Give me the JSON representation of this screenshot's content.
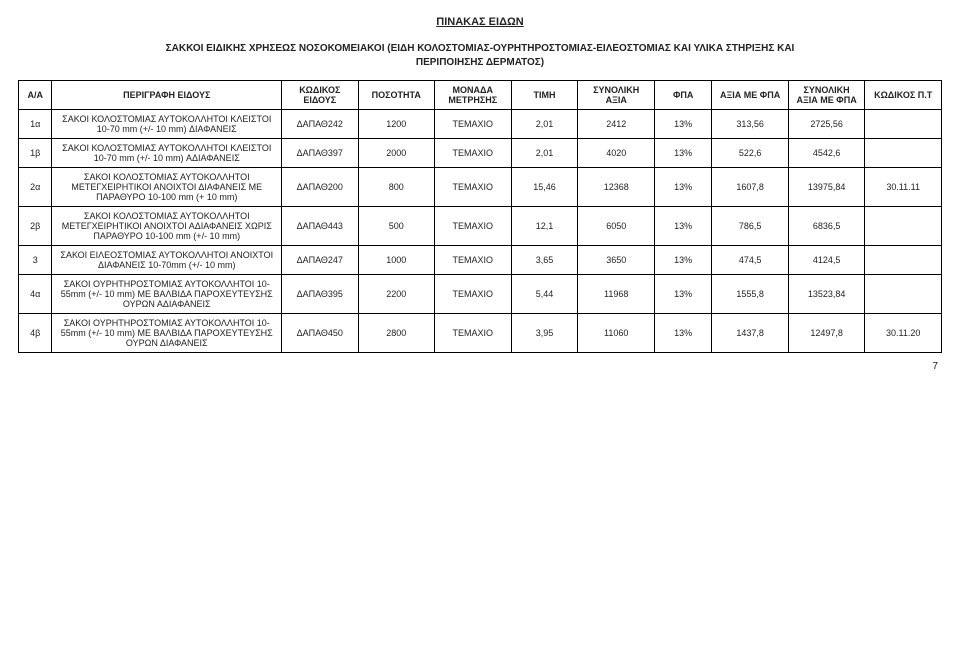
{
  "title": "ΠΙΝΑΚΑΣ ΕΙΔΩΝ",
  "subtitle_line1": "ΣΑΚΚΟΙ ΕΙΔΙΚΗΣ ΧΡΗΣΕΩΣ ΝΟΣΟΚΟΜΕΙΑΚΟΙ (ΕΙΔΗ ΚΟΛΟΣΤΟΜΙΑΣ-ΟΥΡΗΤΗΡΟΣΤΟΜΙΑΣ-ΕΙΛΕΟΣΤΟΜΙΑΣ ΚΑΙ ΥΛΙΚΑ ΣΤΗΡΙΞΗΣ ΚΑΙ",
  "subtitle_line2": "ΠΕΡΙΠΟΙΗΣΗΣ ΔΕΡΜΑΤΟΣ)",
  "headers": {
    "aa": "Α/Α",
    "desc": "ΠΕΡΙΓΡΑΦΗ ΕΙΔΟΥΣ",
    "code": "ΚΩΔΙΚΟΣ ΕΙΔΟΥΣ",
    "qty": "ΠΟΣΟΤΗΤΑ",
    "unit": "ΜΟΝΑΔΑ ΜΕΤΡΗΣΗΣ",
    "price": "ΤΙΜΗ",
    "total": "ΣΥΝΟΛΙΚΗ ΑΞΙΑ",
    "vat": "ΦΠΑ",
    "vatamt": "ΑΞΙΑ ΜΕ ΦΠΑ",
    "grand": "ΣΥΝΟΛΙΚΗ ΑΞΙΑ ΜΕ ΦΠΑ",
    "pt": "ΚΩΔΙΚΟΣ Π.Τ"
  },
  "rows": [
    {
      "aa": "1α",
      "desc": "ΣΑΚΟΙ ΚΟΛΟΣΤΟΜΙΑΣ ΑΥΤΟΚΟΛΛΗΤΟΙ ΚΛΕΙΣΤΟΙ 10-70 mm (+/- 10 mm) ΔΙΑΦΑΝΕΙΣ",
      "code": "ΔΑΠΑΘ242",
      "qty": "1200",
      "unit": "ΤΕΜΑΧΙΟ",
      "price": "2,01",
      "total": "2412",
      "vat": "13%",
      "vatamt": "313,56",
      "grand": "2725,56",
      "pt": ""
    },
    {
      "aa": "1β",
      "desc": "ΣΑΚΟΙ ΚΟΛΟΣΤΟΜΙΑΣ ΑΥΤΟΚΟΛΛΗΤΟΙ ΚΛΕΙΣΤΟΙ 10-70 mm (+/- 10 mm) ΑΔΙΑΦΑΝΕΙΣ",
      "code": "ΔΑΠΑΘ397",
      "qty": "2000",
      "unit": "ΤΕΜΑΧΙΟ",
      "price": "2,01",
      "total": "4020",
      "vat": "13%",
      "vatamt": "522,6",
      "grand": "4542,6",
      "pt": ""
    },
    {
      "aa": "2α",
      "desc": "ΣΑΚΟΙ ΚΟΛΟΣΤΟΜΙΑΣ ΑΥΤΟΚΟΛΛΗΤΟΙ ΜΕΤΕΓΧΕΙΡΗΤΙΚΟΙ ΑΝΟΙΧΤΟΙ ΔΙΑΦΑΝΕΙΣ ΜΕ ΠΑΡΑΘΥΡΟ 10-100 mm (+ 10 mm)",
      "code": "ΔΑΠΑΘ200",
      "qty": "800",
      "unit": "ΤΕΜΑΧΙΟ",
      "price": "15,46",
      "total": "12368",
      "vat": "13%",
      "vatamt": "1607,8",
      "grand": "13975,84",
      "pt": "30.11.11"
    },
    {
      "aa": "2β",
      "desc": "ΣΑΚΟΙ ΚΟΛΟΣΤΟΜΙΑΣ ΑΥΤΟΚΟΛΛΗΤΟΙ ΜΕΤΕΓΧΕΙΡΗΤΙΚΟΙ ΑΝΟΙΧΤΟΙ ΑΔΙΑΦΑΝΕΙΣ ΧΩΡΙΣ ΠΑΡΑΘΥΡΟ 10-100 mm (+/- 10 mm)",
      "code": "ΔΑΠΑΘ443",
      "qty": "500",
      "unit": "ΤΕΜΑΧΙΟ",
      "price": "12,1",
      "total": "6050",
      "vat": "13%",
      "vatamt": "786,5",
      "grand": "6836,5",
      "pt": ""
    },
    {
      "aa": "3",
      "desc": "ΣΑΚΟΙ ΕΙΛΕΟΣΤΟΜΙΑΣ ΑΥΤΟΚΟΛΛΗΤΟΙ ΑΝΟΙΧΤΟΙ ΔΙΑΦΑΝΕΙΣ 10-70mm (+/- 10 mm)",
      "code": "ΔΑΠΑΘ247",
      "qty": "1000",
      "unit": "ΤΕΜΑΧΙΟ",
      "price": "3,65",
      "total": "3650",
      "vat": "13%",
      "vatamt": "474,5",
      "grand": "4124,5",
      "pt": ""
    },
    {
      "aa": "4α",
      "desc": "ΣΑΚΟΙ ΟΥΡΗΤΗΡΟΣΤΟΜΙΑΣ ΑΥΤΟΚΟΛΛΗΤΟΙ 10-55mm (+/- 10 mm) ΜΕ ΒΑΛΒΙΔΑ ΠΑΡΟΧΕΥΤΕΥΣΗΣ ΟΥΡΩΝ ΑΔΙΑΦΑΝΕΙΣ",
      "code": "ΔΑΠΑΘ395",
      "qty": "2200",
      "unit": "ΤΕΜΑΧΙΟ",
      "price": "5,44",
      "total": "11968",
      "vat": "13%",
      "vatamt": "1555,8",
      "grand": "13523,84",
      "pt": ""
    },
    {
      "aa": "4β",
      "desc": "ΣΑΚΟΙ ΟΥΡΗΤΗΡΟΣΤΟΜΙΑΣ ΑΥΤΟΚΟΛΛΗΤΟΙ 10-55mm (+/- 10 mm) ΜΕ ΒΑΛΒΙΔΑ ΠΑΡΟΧΕΥΤΕΥΣΗΣ ΟΥΡΩΝ ΔΙΑΦΑΝΕΙΣ",
      "code": "ΔΑΠΑΘ450",
      "qty": "2800",
      "unit": "ΤΕΜΑΧΙΟ",
      "price": "3,95",
      "total": "11060",
      "vat": "13%",
      "vatamt": "1437,8",
      "grand": "12497,8",
      "pt": "30.11.20"
    }
  ],
  "page_number": "7",
  "colors": {
    "text": "#232323",
    "border": "#000000",
    "background": "#ffffff"
  },
  "fontsize": {
    "title": 11,
    "subtitle": 10,
    "header": 9,
    "cell": 9
  }
}
